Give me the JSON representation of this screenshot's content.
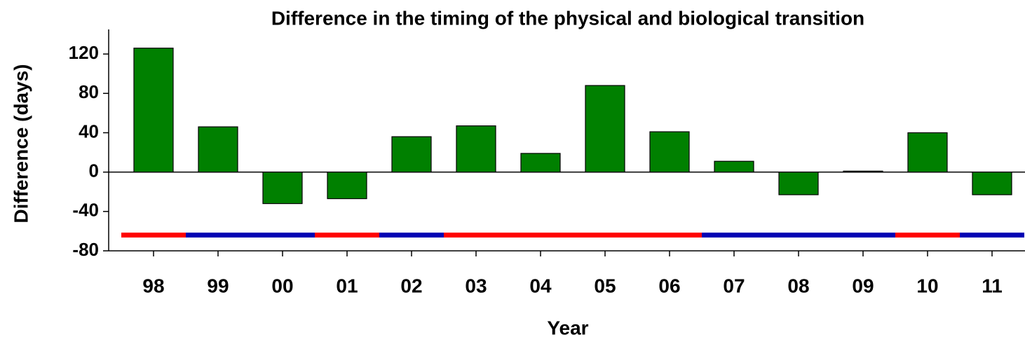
{
  "chart_data": {
    "type": "bar",
    "title": "Difference in the timing of the physical and biological transition",
    "x_label": "Year",
    "y_label": "Difference (days)",
    "categories": [
      "98",
      "99",
      "00",
      "01",
      "02",
      "03",
      "04",
      "05",
      "06",
      "07",
      "08",
      "09",
      "10",
      "11"
    ],
    "values": [
      126,
      46,
      -32,
      -27,
      36,
      47,
      19,
      88,
      41,
      11,
      -23,
      1,
      40,
      -23
    ],
    "color": "#008000",
    "band_value": -64,
    "band_colors": [
      "#ff0000",
      "#0000b4",
      "#0000b4",
      "#ff0000",
      "#0000b4",
      "#ff0000",
      "#ff0000",
      "#ff0000",
      "#ff0000",
      "#0000b4",
      "#0000b4",
      "#0000b4",
      "#ff0000",
      "#0000b4"
    ],
    "ylim": [
      -80,
      145
    ],
    "yticks": [
      -80,
      -40,
      0,
      40,
      80,
      120
    ],
    "grid": false
  }
}
